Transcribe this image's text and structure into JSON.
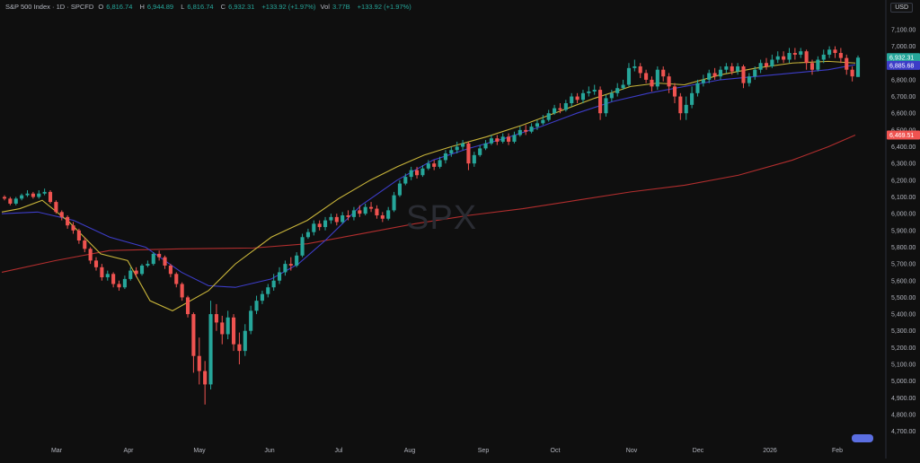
{
  "legend": {
    "symbol": "S&P 500 Index · 1D · SPCFD",
    "open_label": "O",
    "open": "6,816.74",
    "high_label": "H",
    "high": "6,944.89",
    "low_label": "L",
    "low": "6,816.74",
    "close_label": "C",
    "close": "6,932.31",
    "change": "+133.92 (+1.97%)",
    "vol_label": "Vol",
    "vol": "3.77B",
    "vol_change": "+133.92 (+1.97%)"
  },
  "currency": "USD",
  "watermark": "SPX",
  "colors": {
    "up": "#26a69a",
    "down": "#ef5350",
    "ma20": "#c9b53a",
    "ma50": "#3d3dc8",
    "ma200": "#b22e2e",
    "background": "#0f0f0f",
    "axis_text": "#b2b5be"
  },
  "chart_data": {
    "type": "candlestick",
    "ylim": [
      4650,
      7180
    ],
    "y_ticks": [
      4700,
      4800,
      4900,
      5000,
      5100,
      5200,
      5300,
      5400,
      5500,
      5600,
      5700,
      5800,
      5900,
      6000,
      6100,
      6200,
      6300,
      6400,
      6500,
      6600,
      6700,
      6800,
      6900,
      7000,
      7100
    ],
    "x_labels": [
      "Mar",
      "Apr",
      "May",
      "Jun",
      "Jul",
      "Aug",
      "Sep",
      "Oct",
      "Nov",
      "Dec",
      "2026",
      "Feb"
    ],
    "badges": [
      {
        "value": "6,932.31",
        "color": "#26a69a"
      },
      {
        "value": "6,885.68",
        "color": "#3d3dc8"
      },
      {
        "value": "6,469.51",
        "color": "#ef5350"
      }
    ],
    "ma20": [
      [
        0,
        6010
      ],
      [
        20,
        6030
      ],
      [
        45,
        6080
      ],
      [
        75,
        5950
      ],
      [
        110,
        5760
      ],
      [
        140,
        5720
      ],
      [
        165,
        5480
      ],
      [
        190,
        5420
      ],
      [
        230,
        5540
      ],
      [
        260,
        5700
      ],
      [
        300,
        5860
      ],
      [
        340,
        5960
      ],
      [
        375,
        6090
      ],
      [
        410,
        6200
      ],
      [
        440,
        6280
      ],
      [
        470,
        6350
      ],
      [
        500,
        6400
      ],
      [
        540,
        6460
      ],
      [
        580,
        6530
      ],
      [
        620,
        6610
      ],
      [
        660,
        6690
      ],
      [
        700,
        6760
      ],
      [
        730,
        6780
      ],
      [
        760,
        6770
      ],
      [
        800,
        6830
      ],
      [
        840,
        6870
      ],
      [
        880,
        6900
      ],
      [
        920,
        6910
      ],
      [
        950,
        6900
      ]
    ],
    "ma50": [
      [
        0,
        6000
      ],
      [
        40,
        6010
      ],
      [
        80,
        5960
      ],
      [
        120,
        5860
      ],
      [
        160,
        5800
      ],
      [
        200,
        5650
      ],
      [
        230,
        5570
      ],
      [
        260,
        5560
      ],
      [
        300,
        5610
      ],
      [
        330,
        5700
      ],
      [
        360,
        5840
      ],
      [
        400,
        6050
      ],
      [
        440,
        6200
      ],
      [
        480,
        6320
      ],
      [
        520,
        6390
      ],
      [
        560,
        6450
      ],
      [
        600,
        6520
      ],
      [
        640,
        6600
      ],
      [
        680,
        6670
      ],
      [
        720,
        6720
      ],
      [
        760,
        6760
      ],
      [
        800,
        6800
      ],
      [
        840,
        6820
      ],
      [
        880,
        6840
      ],
      [
        920,
        6860
      ],
      [
        950,
        6890
      ]
    ],
    "ma200": [
      [
        0,
        5650
      ],
      [
        60,
        5720
      ],
      [
        120,
        5780
      ],
      [
        200,
        5790
      ],
      [
        280,
        5795
      ],
      [
        340,
        5820
      ],
      [
        400,
        5880
      ],
      [
        460,
        5940
      ],
      [
        520,
        5990
      ],
      [
        580,
        6030
      ],
      [
        640,
        6080
      ],
      [
        700,
        6130
      ],
      [
        760,
        6170
      ],
      [
        820,
        6230
      ],
      [
        880,
        6320
      ],
      [
        920,
        6400
      ],
      [
        950,
        6470
      ]
    ],
    "candles": [
      [
        6100,
        6090,
        6110,
        6080
      ],
      [
        6090,
        6060,
        6100,
        6050
      ],
      [
        6060,
        6090,
        6100,
        6050
      ],
      [
        6090,
        6110,
        6120,
        6080
      ],
      [
        6110,
        6120,
        6140,
        6100
      ],
      [
        6120,
        6100,
        6130,
        6090
      ],
      [
        6100,
        6120,
        6140,
        6090
      ],
      [
        6120,
        6130,
        6150,
        6110
      ],
      [
        6130,
        6070,
        6140,
        6060
      ],
      [
        6070,
        6010,
        6080,
        6000
      ],
      [
        6010,
        5980,
        6020,
        5960
      ],
      [
        5980,
        5930,
        5990,
        5910
      ],
      [
        5930,
        5900,
        5950,
        5880
      ],
      [
        5900,
        5840,
        5910,
        5820
      ],
      [
        5840,
        5790,
        5860,
        5770
      ],
      [
        5790,
        5720,
        5800,
        5700
      ],
      [
        5720,
        5680,
        5740,
        5660
      ],
      [
        5680,
        5620,
        5700,
        5600
      ],
      [
        5620,
        5640,
        5660,
        5600
      ],
      [
        5640,
        5580,
        5650,
        5560
      ],
      [
        5580,
        5560,
        5600,
        5540
      ],
      [
        5560,
        5610,
        5630,
        5550
      ],
      [
        5610,
        5660,
        5680,
        5600
      ],
      [
        5660,
        5640,
        5680,
        5620
      ],
      [
        5640,
        5690,
        5700,
        5630
      ],
      [
        5690,
        5700,
        5720,
        5680
      ],
      [
        5700,
        5760,
        5770,
        5690
      ],
      [
        5760,
        5740,
        5780,
        5720
      ],
      [
        5740,
        5690,
        5750,
        5670
      ],
      [
        5690,
        5640,
        5700,
        5620
      ],
      [
        5640,
        5580,
        5650,
        5560
      ],
      [
        5580,
        5500,
        5590,
        5480
      ],
      [
        5500,
        5400,
        5510,
        5380
      ],
      [
        5400,
        5150,
        5410,
        5050
      ],
      [
        5150,
        5060,
        5260,
        4980
      ],
      [
        5060,
        4980,
        5120,
        4860
      ],
      [
        4980,
        5400,
        5480,
        4950
      ],
      [
        5400,
        5350,
        5460,
        5300
      ],
      [
        5350,
        5280,
        5390,
        5220
      ],
      [
        5280,
        5380,
        5420,
        5250
      ],
      [
        5380,
        5220,
        5400,
        5180
      ],
      [
        5220,
        5180,
        5290,
        5100
      ],
      [
        5180,
        5300,
        5340,
        5150
      ],
      [
        5300,
        5420,
        5450,
        5280
      ],
      [
        5420,
        5480,
        5510,
        5400
      ],
      [
        5480,
        5520,
        5540,
        5460
      ],
      [
        5520,
        5560,
        5580,
        5500
      ],
      [
        5560,
        5600,
        5640,
        5540
      ],
      [
        5600,
        5650,
        5680,
        5580
      ],
      [
        5650,
        5700,
        5720,
        5630
      ],
      [
        5700,
        5690,
        5740,
        5660
      ],
      [
        5690,
        5750,
        5770,
        5680
      ],
      [
        5750,
        5860,
        5880,
        5740
      ],
      [
        5860,
        5890,
        5910,
        5850
      ],
      [
        5890,
        5940,
        5960,
        5870
      ],
      [
        5940,
        5920,
        5960,
        5900
      ],
      [
        5920,
        5960,
        5980,
        5900
      ],
      [
        5960,
        5980,
        6000,
        5940
      ],
      [
        5980,
        5950,
        6000,
        5930
      ],
      [
        5950,
        5990,
        6010,
        5940
      ],
      [
        5990,
        5980,
        6020,
        5960
      ],
      [
        5980,
        6020,
        6040,
        5960
      ],
      [
        6020,
        6000,
        6050,
        5980
      ],
      [
        6000,
        6040,
        6060,
        5990
      ],
      [
        6040,
        6030,
        6070,
        6010
      ],
      [
        6030,
        5990,
        6050,
        5970
      ],
      [
        5990,
        5970,
        6010,
        5950
      ],
      [
        5970,
        6020,
        6040,
        5960
      ],
      [
        6020,
        6110,
        6130,
        6010
      ],
      [
        6110,
        6180,
        6200,
        6100
      ],
      [
        6180,
        6220,
        6240,
        6170
      ],
      [
        6220,
        6260,
        6280,
        6200
      ],
      [
        6260,
        6230,
        6280,
        6210
      ],
      [
        6230,
        6270,
        6290,
        6220
      ],
      [
        6270,
        6300,
        6320,
        6260
      ],
      [
        6300,
        6280,
        6320,
        6260
      ],
      [
        6280,
        6320,
        6340,
        6270
      ],
      [
        6320,
        6360,
        6380,
        6300
      ],
      [
        6360,
        6380,
        6400,
        6340
      ],
      [
        6380,
        6400,
        6430,
        6360
      ],
      [
        6400,
        6420,
        6440,
        6380
      ],
      [
        6420,
        6300,
        6430,
        6260
      ],
      [
        6300,
        6350,
        6370,
        6280
      ],
      [
        6350,
        6390,
        6410,
        6340
      ],
      [
        6390,
        6420,
        6440,
        6380
      ],
      [
        6420,
        6450,
        6470,
        6410
      ],
      [
        6450,
        6430,
        6470,
        6410
      ],
      [
        6430,
        6460,
        6480,
        6420
      ],
      [
        6460,
        6430,
        6480,
        6410
      ],
      [
        6430,
        6470,
        6490,
        6420
      ],
      [
        6470,
        6500,
        6520,
        6460
      ],
      [
        6500,
        6490,
        6530,
        6470
      ],
      [
        6490,
        6520,
        6540,
        6480
      ],
      [
        6520,
        6540,
        6560,
        6500
      ],
      [
        6540,
        6560,
        6590,
        6530
      ],
      [
        6560,
        6600,
        6620,
        6550
      ],
      [
        6600,
        6630,
        6650,
        6590
      ],
      [
        6630,
        6620,
        6660,
        6600
      ],
      [
        6620,
        6660,
        6680,
        6610
      ],
      [
        6660,
        6700,
        6720,
        6640
      ],
      [
        6700,
        6680,
        6720,
        6660
      ],
      [
        6680,
        6720,
        6740,
        6660
      ],
      [
        6720,
        6730,
        6760,
        6700
      ],
      [
        6730,
        6740,
        6770,
        6710
      ],
      [
        6740,
        6600,
        6760,
        6560
      ],
      [
        6600,
        6690,
        6710,
        6580
      ],
      [
        6690,
        6720,
        6740,
        6670
      ],
      [
        6720,
        6750,
        6780,
        6700
      ],
      [
        6750,
        6770,
        6800,
        6740
      ],
      [
        6770,
        6870,
        6900,
        6760
      ],
      [
        6870,
        6880,
        6920,
        6850
      ],
      [
        6880,
        6840,
        6900,
        6810
      ],
      [
        6840,
        6800,
        6860,
        6780
      ],
      [
        6800,
        6760,
        6820,
        6730
      ],
      [
        6760,
        6860,
        6880,
        6740
      ],
      [
        6860,
        6820,
        6880,
        6790
      ],
      [
        6820,
        6760,
        6840,
        6720
      ],
      [
        6760,
        6700,
        6780,
        6660
      ],
      [
        6700,
        6600,
        6720,
        6560
      ],
      [
        6600,
        6650,
        6700,
        6560
      ],
      [
        6650,
        6720,
        6760,
        6630
      ],
      [
        6720,
        6780,
        6800,
        6700
      ],
      [
        6780,
        6800,
        6830,
        6760
      ],
      [
        6800,
        6840,
        6860,
        6780
      ],
      [
        6840,
        6820,
        6870,
        6800
      ],
      [
        6820,
        6860,
        6880,
        6800
      ],
      [
        6860,
        6880,
        6900,
        6840
      ],
      [
        6880,
        6850,
        6900,
        6830
      ],
      [
        6850,
        6880,
        6900,
        6830
      ],
      [
        6880,
        6780,
        6890,
        6750
      ],
      [
        6780,
        6820,
        6840,
        6760
      ],
      [
        6820,
        6860,
        6880,
        6800
      ],
      [
        6860,
        6900,
        6920,
        6840
      ],
      [
        6900,
        6880,
        6930,
        6860
      ],
      [
        6880,
        6920,
        6950,
        6870
      ],
      [
        6920,
        6940,
        6970,
        6900
      ],
      [
        6940,
        6920,
        6970,
        6900
      ],
      [
        6920,
        6960,
        6990,
        6900
      ],
      [
        6960,
        6950,
        6990,
        6920
      ],
      [
        6950,
        6970,
        6990,
        6930
      ],
      [
        6970,
        6900,
        6980,
        6860
      ],
      [
        6900,
        6860,
        6920,
        6830
      ],
      [
        6860,
        6920,
        6940,
        6850
      ],
      [
        6920,
        6950,
        6980,
        6900
      ],
      [
        6950,
        6980,
        7000,
        6930
      ],
      [
        6980,
        6960,
        7000,
        6930
      ],
      [
        6960,
        6930,
        6990,
        6900
      ],
      [
        6930,
        6860,
        6950,
        6830
      ],
      [
        6860,
        6820,
        6880,
        6790
      ],
      [
        6816.74,
        6932.31,
        6944.89,
        6816.74
      ]
    ]
  }
}
